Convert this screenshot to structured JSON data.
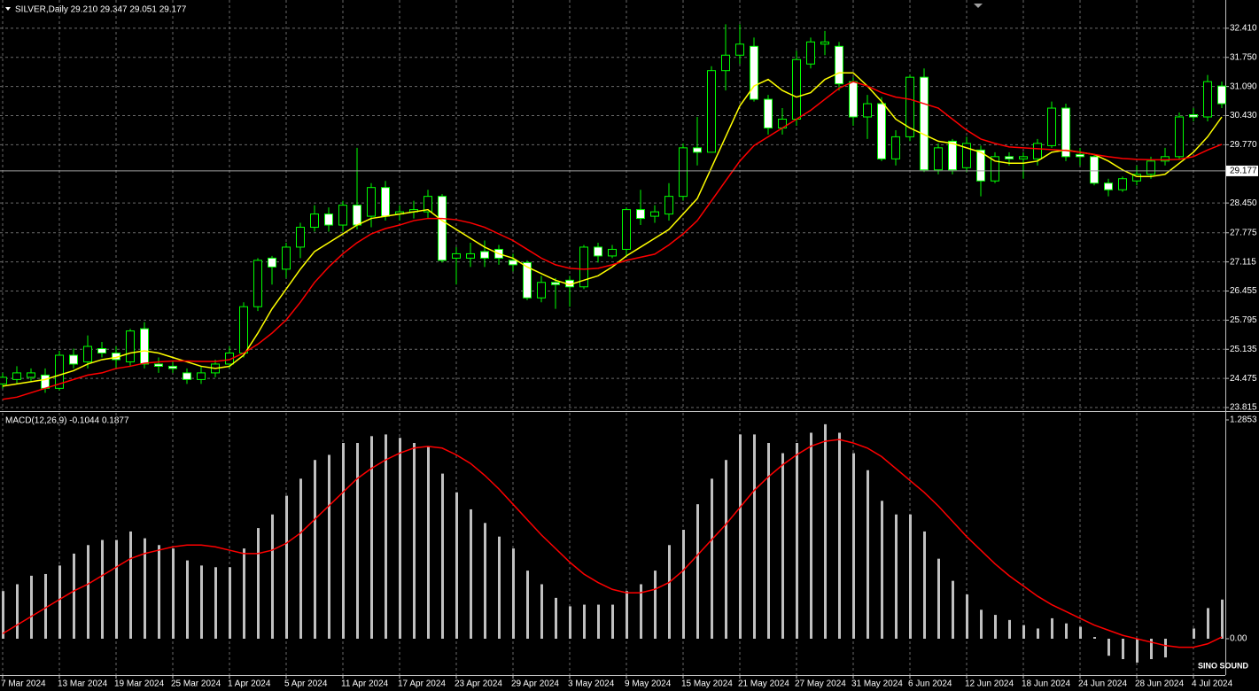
{
  "chart_data": [
    {
      "type": "candlestick",
      "title": "SILVER,Daily  29.210 29.347 29.051 29.177",
      "categories": [
        "7 Mar 2024",
        null,
        null,
        null,
        "13 Mar 2024",
        null,
        null,
        null,
        "19 Mar 2024",
        null,
        null,
        null,
        "25 Mar 2024",
        null,
        null,
        null,
        "1 Apr 2024",
        null,
        null,
        null,
        "5 Apr 2024",
        null,
        null,
        null,
        "11 Apr 2024",
        null,
        null,
        null,
        "17 Apr 2024",
        null,
        null,
        null,
        "23 Apr 2024",
        null,
        null,
        null,
        "29 Apr 2024",
        null,
        null,
        null,
        "3 May 2024",
        null,
        null,
        null,
        "9 May 2024",
        null,
        null,
        null,
        "15 May 2024",
        null,
        null,
        null,
        "21 May 2024",
        null,
        null,
        null,
        "27 May 2024",
        null,
        null,
        null,
        "31 May 2024",
        null,
        null,
        null,
        "6 Jun 2024",
        null,
        null,
        null,
        "12 Jun 2024",
        null,
        null,
        null,
        "18 Jun 2024",
        null,
        null,
        null,
        "24 Jun 2024",
        null,
        null,
        null,
        "28 Jun 2024",
        null,
        null,
        null,
        "4 Jul 2024",
        null,
        null
      ],
      "open": [
        24.35,
        24.45,
        24.5,
        24.55,
        24.25,
        25.0,
        24.85,
        25.15,
        25.05,
        24.85,
        25.6,
        24.8,
        24.75,
        24.6,
        24.45,
        24.6,
        24.8,
        25.05,
        26.1,
        27.2,
        26.95,
        27.45,
        27.9,
        28.2,
        27.95,
        28.4,
        28.15,
        28.8,
        28.2,
        28.25,
        28.25,
        28.6,
        27.2,
        27.2,
        27.35,
        27.4,
        27.15,
        27.1,
        26.3,
        26.65,
        26.7,
        26.55,
        27.45,
        27.25,
        27.4,
        28.3,
        28.15,
        28.2,
        28.6,
        29.7,
        29.6,
        31.45,
        31.8,
        32.0,
        30.8,
        30.15,
        30.35,
        31.6,
        32.05,
        32.0,
        31.2,
        30.4,
        30.7,
        29.45,
        29.95,
        31.3,
        29.2,
        29.85,
        29.25,
        29.65,
        28.95,
        29.5,
        29.45,
        29.45,
        29.75,
        30.6,
        29.55,
        29.5,
        28.9,
        28.75,
        28.95,
        29.1,
        29.4,
        29.5,
        30.45,
        30.4,
        31.1
      ],
      "high": [
        24.6,
        24.75,
        24.7,
        24.7,
        25.1,
        25.15,
        25.45,
        25.3,
        25.2,
        25.6,
        25.75,
        24.95,
        24.85,
        24.7,
        24.75,
        24.9,
        25.2,
        26.2,
        27.2,
        27.25,
        27.55,
        28.0,
        28.4,
        28.35,
        28.5,
        29.7,
        28.9,
        28.95,
        28.4,
        28.5,
        28.75,
        28.65,
        27.45,
        27.55,
        27.6,
        27.5,
        27.3,
        27.15,
        26.8,
        26.75,
        26.8,
        27.5,
        27.55,
        27.5,
        28.35,
        28.75,
        28.4,
        28.9,
        29.8,
        30.4,
        31.55,
        32.5,
        32.5,
        32.2,
        30.9,
        30.6,
        31.9,
        32.2,
        32.35,
        32.1,
        31.3,
        30.9,
        30.85,
        30.1,
        31.35,
        31.5,
        29.8,
        29.9,
        29.95,
        29.75,
        29.6,
        29.6,
        29.6,
        29.9,
        30.75,
        30.7,
        29.7,
        29.55,
        29.0,
        29.05,
        29.3,
        29.5,
        29.7,
        30.5,
        30.6,
        31.35,
        31.2
      ],
      "low": [
        24.25,
        24.35,
        24.4,
        24.15,
        24.2,
        24.7,
        24.7,
        24.95,
        24.7,
        24.75,
        24.7,
        24.6,
        24.6,
        24.35,
        24.35,
        24.5,
        24.7,
        24.95,
        26.0,
        26.6,
        26.75,
        27.2,
        27.8,
        27.8,
        27.8,
        27.85,
        27.9,
        28.05,
        28.05,
        28.1,
        28.1,
        27.1,
        26.6,
        27.0,
        27.0,
        27.05,
        26.9,
        26.25,
        26.2,
        26.05,
        26.1,
        26.5,
        27.1,
        27.2,
        27.25,
        27.95,
        28.0,
        28.05,
        28.5,
        29.3,
        29.6,
        31.0,
        31.6,
        30.75,
        30.0,
        30.0,
        30.2,
        31.5,
        31.8,
        31.0,
        30.2,
        29.9,
        29.4,
        29.3,
        29.85,
        29.15,
        29.1,
        29.1,
        29.15,
        28.6,
        28.9,
        29.3,
        29.0,
        29.3,
        29.7,
        29.4,
        29.3,
        28.85,
        28.6,
        28.7,
        28.85,
        29.0,
        29.3,
        29.45,
        30.3,
        30.3,
        30.6
      ],
      "close": [
        24.5,
        24.6,
        24.6,
        24.25,
        25.0,
        24.8,
        25.2,
        25.05,
        24.9,
        25.55,
        24.8,
        24.75,
        24.7,
        24.45,
        24.6,
        24.8,
        25.05,
        26.1,
        27.15,
        27.0,
        27.45,
        27.9,
        28.2,
        27.95,
        28.4,
        27.95,
        28.8,
        28.15,
        28.25,
        28.3,
        28.6,
        27.15,
        27.3,
        27.3,
        27.2,
        27.2,
        27.05,
        26.3,
        26.65,
        26.6,
        26.55,
        27.45,
        27.25,
        27.4,
        28.3,
        28.1,
        28.25,
        28.6,
        29.7,
        29.6,
        31.45,
        31.8,
        32.05,
        30.8,
        30.15,
        30.35,
        31.7,
        32.1,
        32.1,
        31.15,
        30.4,
        30.7,
        29.45,
        29.95,
        31.3,
        29.2,
        29.7,
        29.2,
        29.8,
        28.95,
        29.5,
        29.45,
        29.5,
        29.8,
        30.6,
        29.5,
        29.5,
        28.9,
        28.75,
        29.0,
        29.1,
        29.4,
        29.5,
        30.4,
        30.4,
        31.2,
        30.7
      ],
      "up_color": "#000000",
      "down_color": "#ffffff",
      "wick_color": "#00ff00",
      "series": [
        {
          "color": "#ffff00",
          "values": [
            24.3,
            24.35,
            24.4,
            24.45,
            24.55,
            24.65,
            24.8,
            24.9,
            24.95,
            25.05,
            25.1,
            25.05,
            24.95,
            24.85,
            24.75,
            24.7,
            24.75,
            25.0,
            25.5,
            26.05,
            26.5,
            26.95,
            27.35,
            27.55,
            27.75,
            27.95,
            28.1,
            28.15,
            28.2,
            28.25,
            28.3,
            28.05,
            27.85,
            27.65,
            27.45,
            27.3,
            27.2,
            27.0,
            26.85,
            26.7,
            26.6,
            26.7,
            26.8,
            27.0,
            27.25,
            27.45,
            27.65,
            27.85,
            28.2,
            28.55,
            29.25,
            29.95,
            30.65,
            31.1,
            31.25,
            31.0,
            30.85,
            30.95,
            31.25,
            31.4,
            31.4,
            31.1,
            30.75,
            30.35,
            30.15,
            30.0,
            29.85,
            29.8,
            29.7,
            29.6,
            29.4,
            29.35,
            29.35,
            29.4,
            29.6,
            29.65,
            29.6,
            29.55,
            29.4,
            29.2,
            29.05,
            29.05,
            29.1,
            29.35,
            29.6,
            29.95,
            30.4
          ]
        },
        {
          "color": "#ff0000",
          "values": [
            24.0,
            24.05,
            24.15,
            24.25,
            24.35,
            24.45,
            24.55,
            24.6,
            24.7,
            24.75,
            24.82,
            24.85,
            24.87,
            24.87,
            24.86,
            24.86,
            24.9,
            25.05,
            25.25,
            25.5,
            25.8,
            26.2,
            26.65,
            27.0,
            27.3,
            27.55,
            27.75,
            27.87,
            27.95,
            28.05,
            28.1,
            28.1,
            28.07,
            28.0,
            27.9,
            27.75,
            27.6,
            27.4,
            27.2,
            27.05,
            26.97,
            26.95,
            26.97,
            27.05,
            27.15,
            27.22,
            27.29,
            27.5,
            27.75,
            28.05,
            28.5,
            28.95,
            29.4,
            29.75,
            29.95,
            30.15,
            30.35,
            30.55,
            30.8,
            31.05,
            31.2,
            31.1,
            30.95,
            30.85,
            30.8,
            30.7,
            30.6,
            30.35,
            30.1,
            29.9,
            29.8,
            29.72,
            29.7,
            29.68,
            29.66,
            29.64,
            29.6,
            29.55,
            29.5,
            29.46,
            29.44,
            29.43,
            29.43,
            29.44,
            29.5,
            29.65,
            29.78
          ]
        }
      ],
      "current_price": 29.177,
      "ylim": [
        23.755,
        33.05
      ],
      "yticks": [
        {
          "value": 32.41,
          "label": "32.410"
        },
        {
          "value": 31.75,
          "label": "31.750"
        },
        {
          "value": 31.09,
          "label": "31.090"
        },
        {
          "value": 30.43,
          "label": "30.430"
        },
        {
          "value": 29.77,
          "label": "29.770"
        },
        {
          "value": 28.45,
          "label": "28.450"
        },
        27.775,
        27.115,
        26.455,
        25.795,
        25.135,
        24.475,
        23.815
      ],
      "grid": true
    },
    {
      "type": "macd",
      "title": "MACD(12,26,9) -0.1044 0.1877",
      "values": [
        0.28,
        0.32,
        0.37,
        0.38,
        0.43,
        0.5,
        0.55,
        0.58,
        0.58,
        0.63,
        0.59,
        0.55,
        0.53,
        0.46,
        0.43,
        0.42,
        0.42,
        0.53,
        0.65,
        0.73,
        0.84,
        0.94,
        1.05,
        1.08,
        1.15,
        1.15,
        1.19,
        1.2,
        1.18,
        1.15,
        1.13,
        0.97,
        0.86,
        0.76,
        0.68,
        0.6,
        0.53,
        0.4,
        0.32,
        0.24,
        0.19,
        0.2,
        0.2,
        0.2,
        0.28,
        0.32,
        0.4,
        0.55,
        0.64,
        0.79,
        0.94,
        1.05,
        1.2,
        1.2,
        1.15,
        1.09,
        1.15,
        1.21,
        1.26,
        1.21,
        1.09,
        0.99,
        0.81,
        0.73,
        0.73,
        0.63,
        0.47,
        0.34,
        0.26,
        0.17,
        0.14,
        0.11,
        0.08,
        0.06,
        0.12,
        0.09,
        0.07,
        0.01,
        -0.1,
        -0.12,
        -0.14,
        -0.12,
        -0.11,
        0.0,
        0.06,
        0.18,
        0.23
      ],
      "color": "#c0c0c0",
      "series": [
        {
          "color": "#ff0000",
          "values": [
            0.03,
            0.08,
            0.13,
            0.18,
            0.23,
            0.28,
            0.32,
            0.37,
            0.42,
            0.47,
            0.5,
            0.52,
            0.54,
            0.55,
            0.55,
            0.54,
            0.52,
            0.5,
            0.5,
            0.52,
            0.56,
            0.62,
            0.7,
            0.78,
            0.86,
            0.94,
            1.0,
            1.05,
            1.09,
            1.12,
            1.13,
            1.12,
            1.08,
            1.03,
            0.96,
            0.88,
            0.79,
            0.7,
            0.61,
            0.53,
            0.45,
            0.38,
            0.33,
            0.29,
            0.27,
            0.27,
            0.29,
            0.33,
            0.4,
            0.49,
            0.58,
            0.67,
            0.77,
            0.87,
            0.95,
            1.02,
            1.08,
            1.13,
            1.16,
            1.17,
            1.15,
            1.12,
            1.07,
            1.0,
            0.93,
            0.86,
            0.78,
            0.69,
            0.6,
            0.52,
            0.44,
            0.37,
            0.31,
            0.25,
            0.2,
            0.16,
            0.12,
            0.08,
            0.05,
            0.02,
            0.0,
            -0.02,
            -0.04,
            -0.05,
            -0.05,
            -0.03,
            0.01
          ]
        }
      ],
      "ylim": [
        -0.2135,
        1.327
      ],
      "yticks": [
        1.2853,
        {
          "value": 0,
          "label": "0.00"
        }
      ]
    }
  ],
  "watermark": "SINO SOUND"
}
